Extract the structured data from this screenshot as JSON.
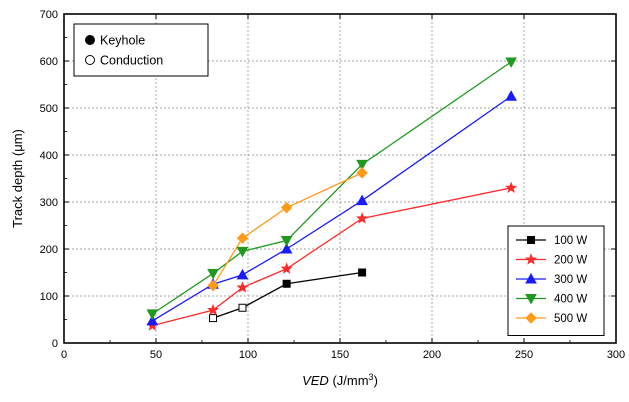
{
  "chart_data": {
    "type": "line",
    "title": "",
    "xlabel": "VED (J/mm³)",
    "xlabel_italic_part": "VED",
    "xlabel_unit_part": " (J/mm",
    "xlabel_sup": "3",
    "xlabel_close": ")",
    "ylabel": "Track depth (μm)",
    "xlim": [
      0,
      300
    ],
    "ylim": [
      0,
      700
    ],
    "xticks": [
      0,
      50,
      100,
      150,
      200,
      250,
      300
    ],
    "yticks": [
      0,
      100,
      200,
      300,
      400,
      500,
      600,
      700
    ],
    "grid": true,
    "legend_position": "bottom-right",
    "marker_legend_position": "top-left",
    "marker_legend": [
      {
        "label": "Keyhole",
        "filled": true
      },
      {
        "label": "Conduction",
        "filled": false
      }
    ],
    "series": [
      {
        "name": "100 W",
        "color": "#000000",
        "marker": "square",
        "points": [
          {
            "x": 81,
            "y": 53,
            "mode": "conduction"
          },
          {
            "x": 97,
            "y": 75,
            "mode": "conduction"
          },
          {
            "x": 121,
            "y": 126,
            "mode": "keyhole"
          },
          {
            "x": 162,
            "y": 150,
            "mode": "keyhole"
          }
        ]
      },
      {
        "name": "200 W",
        "color": "#ff2a2a",
        "marker": "star",
        "points": [
          {
            "x": 48,
            "y": 37,
            "mode": "keyhole"
          },
          {
            "x": 81,
            "y": 70,
            "mode": "keyhole"
          },
          {
            "x": 97,
            "y": 118,
            "mode": "keyhole"
          },
          {
            "x": 121,
            "y": 158,
            "mode": "keyhole"
          },
          {
            "x": 162,
            "y": 265,
            "mode": "keyhole"
          },
          {
            "x": 243,
            "y": 330,
            "mode": "keyhole"
          }
        ]
      },
      {
        "name": "300 W",
        "color": "#1a1aff",
        "marker": "triangle-up",
        "points": [
          {
            "x": 48,
            "y": 47,
            "mode": "keyhole"
          },
          {
            "x": 81,
            "y": 125,
            "mode": "keyhole"
          },
          {
            "x": 97,
            "y": 145,
            "mode": "keyhole"
          },
          {
            "x": 121,
            "y": 200,
            "mode": "keyhole"
          },
          {
            "x": 162,
            "y": 303,
            "mode": "keyhole"
          },
          {
            "x": 243,
            "y": 525,
            "mode": "keyhole"
          }
        ]
      },
      {
        "name": "400 W",
        "color": "#1f9a1f",
        "marker": "triangle-down",
        "points": [
          {
            "x": 48,
            "y": 62,
            "mode": "keyhole"
          },
          {
            "x": 81,
            "y": 148,
            "mode": "keyhole"
          },
          {
            "x": 97,
            "y": 195,
            "mode": "keyhole"
          },
          {
            "x": 121,
            "y": 218,
            "mode": "keyhole"
          },
          {
            "x": 162,
            "y": 380,
            "mode": "keyhole"
          },
          {
            "x": 243,
            "y": 598,
            "mode": "keyhole"
          }
        ]
      },
      {
        "name": "500 W",
        "color": "#ff9a1a",
        "marker": "diamond",
        "points": [
          {
            "x": 81,
            "y": 122,
            "mode": "keyhole"
          },
          {
            "x": 97,
            "y": 223,
            "mode": "keyhole"
          },
          {
            "x": 121,
            "y": 288,
            "mode": "keyhole"
          },
          {
            "x": 162,
            "y": 362,
            "mode": "keyhole"
          }
        ]
      }
    ]
  }
}
